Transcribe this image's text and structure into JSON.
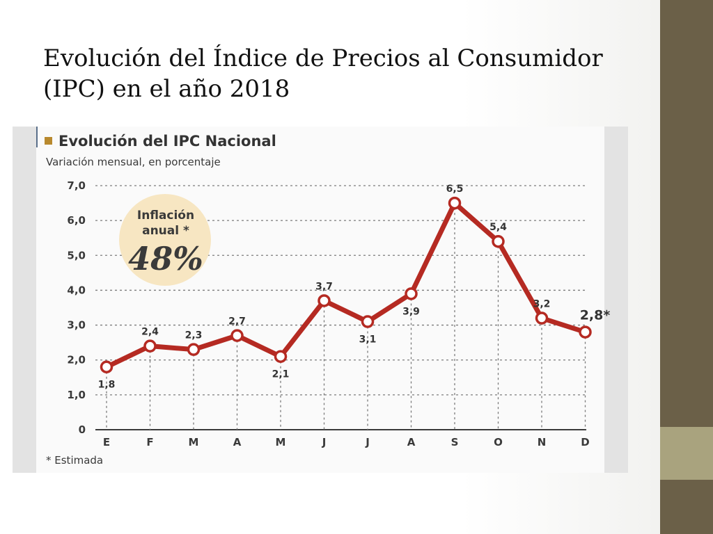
{
  "slide": {
    "title_line1": "Evolución del Índice de Precios al Consumidor",
    "title_line2": "(IPC) en el año 2018"
  },
  "colors": {
    "line": "#b52a22",
    "marker_fill": "#ffffff",
    "badge": "#f7e6c2",
    "heading_square": "#b8892e",
    "grid": "#7a7a7a"
  },
  "chart_data": {
    "type": "line",
    "title": "Evolución del IPC Nacional",
    "subtitle": "Variación mensual, en porcentaje",
    "categories": [
      "E",
      "F",
      "M",
      "A",
      "M",
      "J",
      "J",
      "A",
      "S",
      "O",
      "N",
      "D"
    ],
    "values": [
      1.8,
      2.4,
      2.3,
      2.7,
      2.1,
      3.7,
      3.1,
      3.9,
      6.5,
      5.4,
      3.2,
      2.8
    ],
    "data_labels": [
      "1,8",
      "2,4",
      "2,3",
      "2,7",
      "2,1",
      "3,7",
      "3,1",
      "3,9",
      "6,5",
      "5,4",
      "3,2",
      "2,8*"
    ],
    "y_ticks": [
      0,
      1,
      2,
      3,
      4,
      5,
      6,
      7
    ],
    "y_tick_labels": [
      "0",
      "1,0",
      "2,0",
      "3,0",
      "4,0",
      "5,0",
      "6,0",
      "7,0"
    ],
    "ylim": [
      0,
      7
    ],
    "grid": true,
    "annotation": {
      "line1": "Inflación",
      "line2": "anual *",
      "value": "48%"
    },
    "footnote": "* Estimada"
  }
}
